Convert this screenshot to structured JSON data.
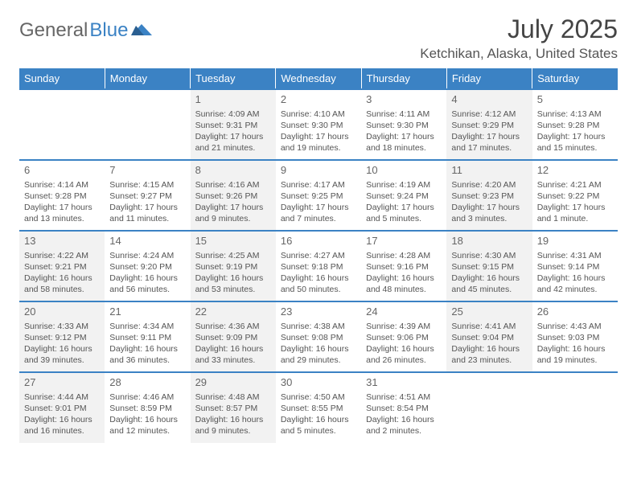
{
  "logo": {
    "word1": "General",
    "word2": "Blue"
  },
  "title": "July 2025",
  "location": "Ketchikan, Alaska, United States",
  "colors": {
    "accent": "#3b82c4",
    "muted_bg": "#f2f2f2",
    "text": "#555"
  },
  "day_headers": [
    "Sunday",
    "Monday",
    "Tuesday",
    "Wednesday",
    "Thursday",
    "Friday",
    "Saturday"
  ],
  "weeks": [
    [
      null,
      null,
      {
        "n": "1",
        "sr": "Sunrise: 4:09 AM",
        "ss": "Sunset: 9:31 PM",
        "dl": "Daylight: 17 hours and 21 minutes.",
        "m": true
      },
      {
        "n": "2",
        "sr": "Sunrise: 4:10 AM",
        "ss": "Sunset: 9:30 PM",
        "dl": "Daylight: 17 hours and 19 minutes."
      },
      {
        "n": "3",
        "sr": "Sunrise: 4:11 AM",
        "ss": "Sunset: 9:30 PM",
        "dl": "Daylight: 17 hours and 18 minutes."
      },
      {
        "n": "4",
        "sr": "Sunrise: 4:12 AM",
        "ss": "Sunset: 9:29 PM",
        "dl": "Daylight: 17 hours and 17 minutes.",
        "m": true
      },
      {
        "n": "5",
        "sr": "Sunrise: 4:13 AM",
        "ss": "Sunset: 9:28 PM",
        "dl": "Daylight: 17 hours and 15 minutes."
      }
    ],
    [
      {
        "n": "6",
        "sr": "Sunrise: 4:14 AM",
        "ss": "Sunset: 9:28 PM",
        "dl": "Daylight: 17 hours and 13 minutes."
      },
      {
        "n": "7",
        "sr": "Sunrise: 4:15 AM",
        "ss": "Sunset: 9:27 PM",
        "dl": "Daylight: 17 hours and 11 minutes."
      },
      {
        "n": "8",
        "sr": "Sunrise: 4:16 AM",
        "ss": "Sunset: 9:26 PM",
        "dl": "Daylight: 17 hours and 9 minutes.",
        "m": true
      },
      {
        "n": "9",
        "sr": "Sunrise: 4:17 AM",
        "ss": "Sunset: 9:25 PM",
        "dl": "Daylight: 17 hours and 7 minutes."
      },
      {
        "n": "10",
        "sr": "Sunrise: 4:19 AM",
        "ss": "Sunset: 9:24 PM",
        "dl": "Daylight: 17 hours and 5 minutes."
      },
      {
        "n": "11",
        "sr": "Sunrise: 4:20 AM",
        "ss": "Sunset: 9:23 PM",
        "dl": "Daylight: 17 hours and 3 minutes.",
        "m": true
      },
      {
        "n": "12",
        "sr": "Sunrise: 4:21 AM",
        "ss": "Sunset: 9:22 PM",
        "dl": "Daylight: 17 hours and 1 minute."
      }
    ],
    [
      {
        "n": "13",
        "sr": "Sunrise: 4:22 AM",
        "ss": "Sunset: 9:21 PM",
        "dl": "Daylight: 16 hours and 58 minutes.",
        "m": true
      },
      {
        "n": "14",
        "sr": "Sunrise: 4:24 AM",
        "ss": "Sunset: 9:20 PM",
        "dl": "Daylight: 16 hours and 56 minutes."
      },
      {
        "n": "15",
        "sr": "Sunrise: 4:25 AM",
        "ss": "Sunset: 9:19 PM",
        "dl": "Daylight: 16 hours and 53 minutes.",
        "m": true
      },
      {
        "n": "16",
        "sr": "Sunrise: 4:27 AM",
        "ss": "Sunset: 9:18 PM",
        "dl": "Daylight: 16 hours and 50 minutes."
      },
      {
        "n": "17",
        "sr": "Sunrise: 4:28 AM",
        "ss": "Sunset: 9:16 PM",
        "dl": "Daylight: 16 hours and 48 minutes."
      },
      {
        "n": "18",
        "sr": "Sunrise: 4:30 AM",
        "ss": "Sunset: 9:15 PM",
        "dl": "Daylight: 16 hours and 45 minutes.",
        "m": true
      },
      {
        "n": "19",
        "sr": "Sunrise: 4:31 AM",
        "ss": "Sunset: 9:14 PM",
        "dl": "Daylight: 16 hours and 42 minutes."
      }
    ],
    [
      {
        "n": "20",
        "sr": "Sunrise: 4:33 AM",
        "ss": "Sunset: 9:12 PM",
        "dl": "Daylight: 16 hours and 39 minutes.",
        "m": true
      },
      {
        "n": "21",
        "sr": "Sunrise: 4:34 AM",
        "ss": "Sunset: 9:11 PM",
        "dl": "Daylight: 16 hours and 36 minutes."
      },
      {
        "n": "22",
        "sr": "Sunrise: 4:36 AM",
        "ss": "Sunset: 9:09 PM",
        "dl": "Daylight: 16 hours and 33 minutes.",
        "m": true
      },
      {
        "n": "23",
        "sr": "Sunrise: 4:38 AM",
        "ss": "Sunset: 9:08 PM",
        "dl": "Daylight: 16 hours and 29 minutes."
      },
      {
        "n": "24",
        "sr": "Sunrise: 4:39 AM",
        "ss": "Sunset: 9:06 PM",
        "dl": "Daylight: 16 hours and 26 minutes."
      },
      {
        "n": "25",
        "sr": "Sunrise: 4:41 AM",
        "ss": "Sunset: 9:04 PM",
        "dl": "Daylight: 16 hours and 23 minutes.",
        "m": true
      },
      {
        "n": "26",
        "sr": "Sunrise: 4:43 AM",
        "ss": "Sunset: 9:03 PM",
        "dl": "Daylight: 16 hours and 19 minutes."
      }
    ],
    [
      {
        "n": "27",
        "sr": "Sunrise: 4:44 AM",
        "ss": "Sunset: 9:01 PM",
        "dl": "Daylight: 16 hours and 16 minutes.",
        "m": true
      },
      {
        "n": "28",
        "sr": "Sunrise: 4:46 AM",
        "ss": "Sunset: 8:59 PM",
        "dl": "Daylight: 16 hours and 12 minutes."
      },
      {
        "n": "29",
        "sr": "Sunrise: 4:48 AM",
        "ss": "Sunset: 8:57 PM",
        "dl": "Daylight: 16 hours and 9 minutes.",
        "m": true
      },
      {
        "n": "30",
        "sr": "Sunrise: 4:50 AM",
        "ss": "Sunset: 8:55 PM",
        "dl": "Daylight: 16 hours and 5 minutes."
      },
      {
        "n": "31",
        "sr": "Sunrise: 4:51 AM",
        "ss": "Sunset: 8:54 PM",
        "dl": "Daylight: 16 hours and 2 minutes."
      },
      null,
      null
    ]
  ]
}
